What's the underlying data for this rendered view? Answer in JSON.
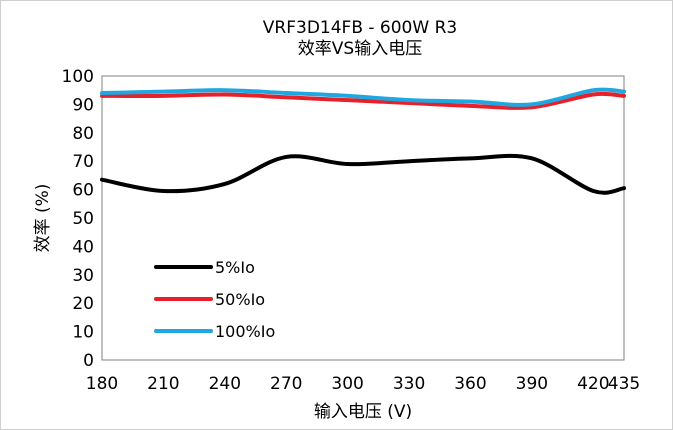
{
  "chart_data": {
    "type": "line",
    "title": "VRF3D14FB - 600W R3",
    "subtitle": "效率VS输入电压",
    "xlabel": "输入电压 (V)",
    "ylabel": "效率 (%)",
    "x": [
      180,
      210,
      240,
      270,
      300,
      330,
      360,
      390,
      420,
      435
    ],
    "xticks": [
      180,
      210,
      240,
      270,
      300,
      330,
      360,
      390,
      420,
      435
    ],
    "xlim": [
      180,
      435
    ],
    "yticks": [
      0,
      10,
      20,
      30,
      40,
      50,
      60,
      70,
      80,
      90,
      100
    ],
    "ylim": [
      0,
      100
    ],
    "grid": false,
    "legend_position": "bottom-left",
    "series": [
      {
        "name": "5%Io",
        "color": "#000000",
        "values": [
          63.5,
          59.5,
          62,
          71.5,
          69,
          70,
          71,
          71,
          59.5,
          60.5
        ]
      },
      {
        "name": "50%Io",
        "color": "#e8202a",
        "values": [
          93,
          93,
          93.5,
          92.5,
          91.5,
          90.5,
          89.5,
          89,
          93.5,
          93
        ]
      },
      {
        "name": "100%Io",
        "color": "#1ea7e1",
        "values": [
          94,
          94.5,
          95,
          94,
          93,
          91.5,
          91,
          90,
          95,
          94.5
        ]
      }
    ]
  }
}
